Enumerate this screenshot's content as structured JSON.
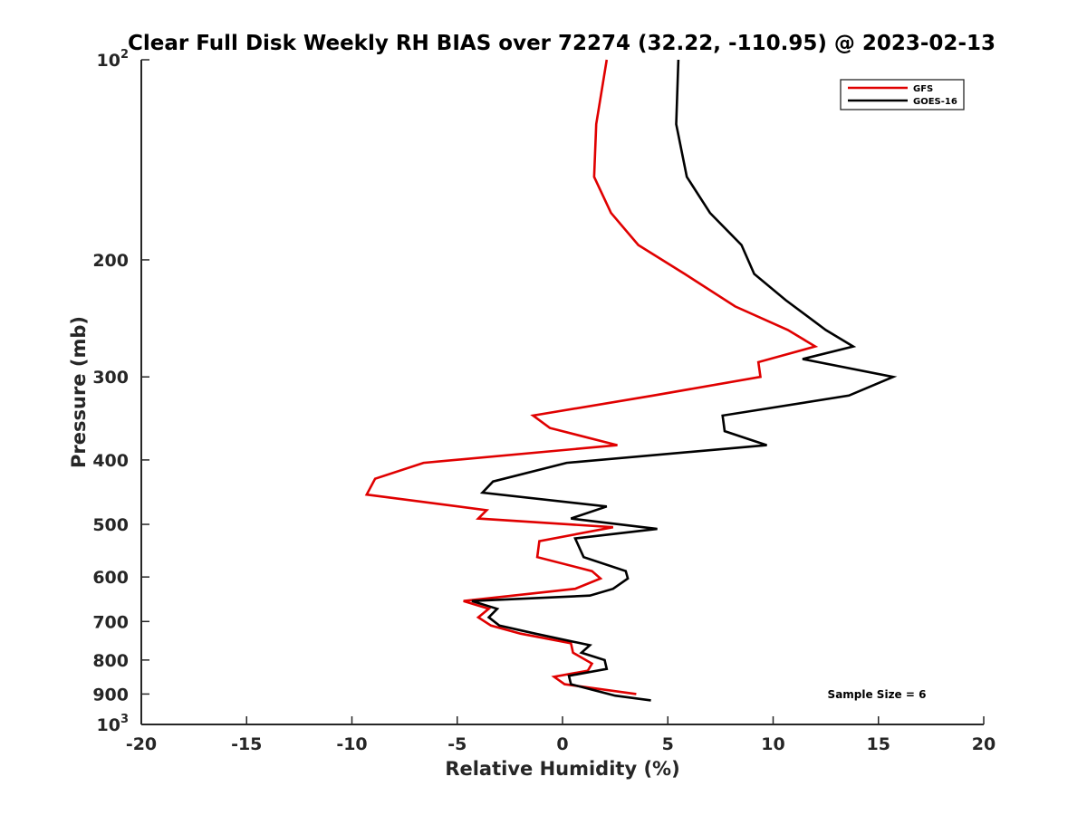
{
  "chart_data": {
    "type": "line",
    "title": "Clear Full Disk Weekly RH BIAS over 72274 (32.22, -110.95) @ 2023-02-13",
    "xlabel": "Relative Humidity (%)",
    "ylabel": "Pressure (mb)",
    "xlim": [
      -20,
      20
    ],
    "ylim": [
      100,
      1000
    ],
    "y_scale": "log",
    "y_reversed": true,
    "grid": false,
    "legend_position": "top-right",
    "x_ticks": [
      "-20",
      "-15",
      "-10",
      "-5",
      "0",
      "5",
      "10",
      "15",
      "20"
    ],
    "y_ticks": [
      {
        "value": 100,
        "base": "10",
        "exp": "2"
      },
      {
        "value": 200,
        "base": "200",
        "exp": ""
      },
      {
        "value": 300,
        "base": "300",
        "exp": ""
      },
      {
        "value": 400,
        "base": "400",
        "exp": ""
      },
      {
        "value": 500,
        "base": "500",
        "exp": ""
      },
      {
        "value": 600,
        "base": "600",
        "exp": ""
      },
      {
        "value": 700,
        "base": "700",
        "exp": ""
      },
      {
        "value": 800,
        "base": "800",
        "exp": ""
      },
      {
        "value": 900,
        "base": "900",
        "exp": ""
      },
      {
        "value": 1000,
        "base": "10",
        "exp": "3"
      }
    ],
    "annotation": "Sample Size = 6",
    "series": [
      {
        "name": "GFS",
        "color": "#e00000",
        "points": [
          [
            2.1,
            100
          ],
          [
            1.6,
            125
          ],
          [
            1.5,
            150
          ],
          [
            2.3,
            170
          ],
          [
            3.6,
            190
          ],
          [
            5.8,
            210
          ],
          [
            8.2,
            235
          ],
          [
            10.7,
            255
          ],
          [
            12.0,
            270
          ],
          [
            9.3,
            285
          ],
          [
            9.4,
            300
          ],
          [
            4.3,
            320
          ],
          [
            -1.4,
            343
          ],
          [
            -0.6,
            358
          ],
          [
            2.6,
            380
          ],
          [
            -6.6,
            404
          ],
          [
            -8.9,
            427
          ],
          [
            -9.3,
            451
          ],
          [
            -3.6,
            476
          ],
          [
            -4.0,
            490
          ],
          [
            2.4,
            505
          ],
          [
            -1.1,
            530
          ],
          [
            -1.2,
            560
          ],
          [
            1.4,
            588
          ],
          [
            1.8,
            603
          ],
          [
            0.6,
            625
          ],
          [
            -4.7,
            652
          ],
          [
            -3.5,
            670
          ],
          [
            -4.0,
            690
          ],
          [
            -3.4,
            710
          ],
          [
            -2.0,
            730
          ],
          [
            0.4,
            755
          ],
          [
            0.5,
            780
          ],
          [
            1.4,
            810
          ],
          [
            1.2,
            830
          ],
          [
            -0.4,
            848
          ],
          [
            0.1,
            870
          ],
          [
            3.5,
            900
          ]
        ]
      },
      {
        "name": "GOES-16",
        "color": "#000000",
        "points": [
          [
            5.5,
            100
          ],
          [
            5.4,
            125
          ],
          [
            5.9,
            150
          ],
          [
            7.0,
            170
          ],
          [
            8.5,
            190
          ],
          [
            9.1,
            210
          ],
          [
            10.6,
            230
          ],
          [
            12.5,
            255
          ],
          [
            13.8,
            270
          ],
          [
            11.4,
            282
          ],
          [
            15.7,
            300
          ],
          [
            13.6,
            320
          ],
          [
            7.6,
            343
          ],
          [
            7.7,
            362
          ],
          [
            9.7,
            380
          ],
          [
            0.2,
            404
          ],
          [
            -3.3,
            431
          ],
          [
            -3.8,
            448
          ],
          [
            2.1,
            470
          ],
          [
            0.4,
            490
          ],
          [
            4.5,
            508
          ],
          [
            0.6,
            525
          ],
          [
            1.0,
            560
          ],
          [
            3.0,
            588
          ],
          [
            3.1,
            603
          ],
          [
            2.4,
            625
          ],
          [
            1.3,
            640
          ],
          [
            -4.3,
            652
          ],
          [
            -3.1,
            670
          ],
          [
            -3.5,
            690
          ],
          [
            -3.0,
            710
          ],
          [
            -1.3,
            730
          ],
          [
            1.3,
            760
          ],
          [
            0.9,
            780
          ],
          [
            2.0,
            800
          ],
          [
            2.1,
            825
          ],
          [
            0.3,
            845
          ],
          [
            0.4,
            870
          ],
          [
            2.5,
            905
          ],
          [
            4.2,
            920
          ]
        ]
      }
    ]
  }
}
